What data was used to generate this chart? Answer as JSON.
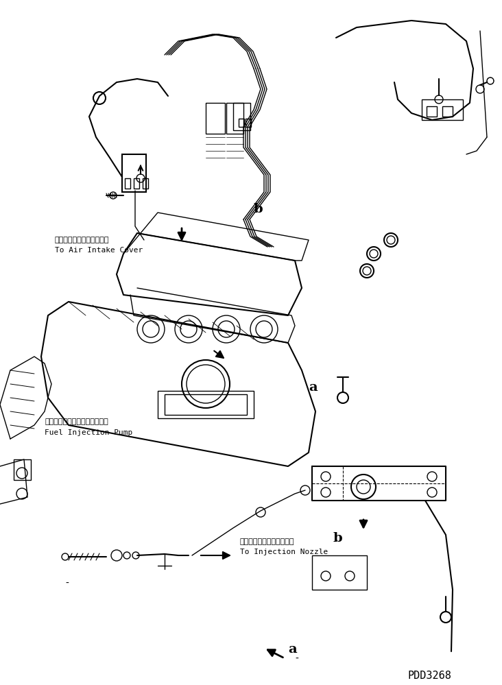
{
  "bg_color": "#ffffff",
  "line_color": "#000000",
  "fig_width": 7.32,
  "fig_height": 9.99,
  "dpi": 100,
  "part_number": "PDD3268",
  "labels": {
    "air_intake_jp": "エアーインテークカバーヘ",
    "air_intake_en": "To Air Intake Cover",
    "fuel_pump_jp": "フェルインジェクションポンプ",
    "fuel_pump_en": "Fuel Injection Pump",
    "nozzle_jp": "インジェクションノズルヘ",
    "nozzle_en": "To Injection Nozzle",
    "label_a": "a",
    "label_b": "b"
  }
}
